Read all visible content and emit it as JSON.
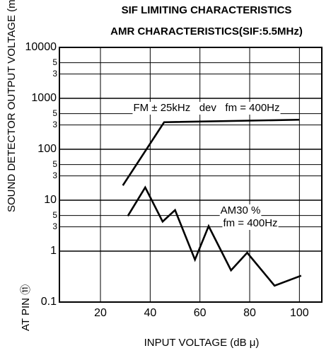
{
  "chart_data": {
    "type": "line",
    "title": "SIF LIMITING CHARACTERISTICS",
    "subtitle": "AMR CHARACTERISTICS(SIF:5.5MHz)",
    "x_label": "INPUT VOLTAGE (dB μ)",
    "y_label": [
      "SOUND DETECTOR OUTPUT VOLTAGE (mVrms)",
      "AT PIN ⑪"
    ],
    "log_y": true,
    "grid": true,
    "xlim": [
      3.5,
      109
    ],
    "xticks": [
      20,
      40,
      60,
      80,
      100
    ],
    "ylim": [
      0.1,
      10000
    ],
    "yticks": [
      0.1,
      1,
      10,
      100,
      1000,
      10000,
      {
        "value": 3,
        "label": "3"
      },
      {
        "value": 5,
        "label": "5"
      },
      {
        "value": 30,
        "label": "3"
      },
      {
        "value": 50,
        "label": "5"
      },
      {
        "value": 300,
        "label": "3"
      },
      {
        "value": 500,
        "label": "5"
      },
      {
        "value": 3000,
        "label": "3"
      },
      {
        "value": 5000,
        "label": "5"
      }
    ],
    "series": [
      {
        "color": "#000000",
        "x": [
          29,
          45.6,
          100
        ],
        "values": [
          19.5,
          340,
          380
        ]
      },
      {
        "color": "#000000",
        "x": [
          31,
          38,
          45,
          50,
          58,
          63.5,
          72.5,
          79,
          90,
          100.7
        ],
        "values": [
          4.9,
          17.8,
          3.8,
          6.4,
          0.68,
          3.1,
          0.42,
          0.93,
          0.21,
          0.33
        ]
      }
    ],
    "annotations": [
      "FM ± 25kHz   dev   fm = 400Hz",
      "AM30 %",
      "fm = 400Hz"
    ]
  }
}
